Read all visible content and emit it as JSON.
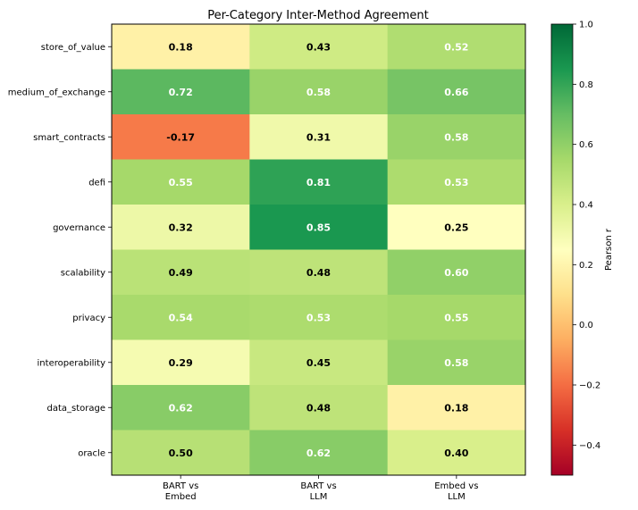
{
  "chart_data": {
    "type": "heatmap",
    "title": "Per-Category Inter-Method Agreement",
    "rows": [
      "store_of_value",
      "medium_of_exchange",
      "smart_contracts",
      "defi",
      "governance",
      "scalability",
      "privacy",
      "interoperability",
      "data_storage",
      "oracle"
    ],
    "columns": [
      {
        "line1": "BART vs",
        "line2": "Embed"
      },
      {
        "line1": "BART vs",
        "line2": "LLM"
      },
      {
        "line1": "Embed vs",
        "line2": "LLM"
      }
    ],
    "values": [
      [
        0.18,
        0.43,
        0.52
      ],
      [
        0.72,
        0.58,
        0.66
      ],
      [
        -0.17,
        0.31,
        0.58
      ],
      [
        0.55,
        0.81,
        0.53
      ],
      [
        0.32,
        0.85,
        0.25
      ],
      [
        0.49,
        0.48,
        0.6
      ],
      [
        0.54,
        0.53,
        0.55
      ],
      [
        0.29,
        0.45,
        0.58
      ],
      [
        0.62,
        0.48,
        0.18
      ],
      [
        0.5,
        0.62,
        0.4
      ]
    ],
    "value_labels": [
      [
        "0.18",
        "0.43",
        "0.52"
      ],
      [
        "0.72",
        "0.58",
        "0.66"
      ],
      [
        "-0.17",
        "0.31",
        "0.58"
      ],
      [
        "0.55",
        "0.81",
        "0.53"
      ],
      [
        "0.32",
        "0.85",
        "0.25"
      ],
      [
        "0.49",
        "0.48",
        "0.60"
      ],
      [
        "0.54",
        "0.53",
        "0.55"
      ],
      [
        "0.29",
        "0.45",
        "0.58"
      ],
      [
        "0.62",
        "0.48",
        "0.18"
      ],
      [
        "0.50",
        "0.62",
        "0.40"
      ]
    ],
    "colormap": "RdYlGn",
    "vmin": -0.5,
    "vmax": 1.0,
    "colorbar": {
      "label": "Pearson r",
      "ticks": [
        -0.4,
        -0.2,
        0.0,
        0.2,
        0.4,
        0.6,
        0.8,
        1.0
      ],
      "tick_labels": [
        "−0.4",
        "−0.2",
        "0.0",
        "0.2",
        "0.4",
        "0.6",
        "0.8",
        "1.0"
      ]
    },
    "text_color_rule": {
      "white_above": 0.5,
      "light_color": "#ffffff",
      "dark_color": "#000000"
    }
  }
}
